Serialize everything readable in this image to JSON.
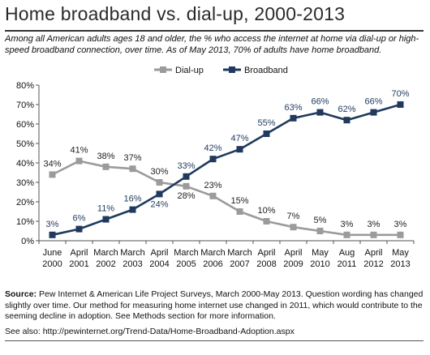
{
  "header": {
    "title": "Home broadband vs. dial-up, 2000-2013",
    "subtitle": "Among all American adults ages 18 and older, the % who access the internet at home via dial-up or high-speed broadband connection, over time. As of May 2013, 70% of adults have home broadband."
  },
  "footer": {
    "source_label": "Source:",
    "source_text": " Pew Internet & American Life Project Surveys, March 2000-May 2013. Question wording has changed slightly over time. Our method for measuring home internet use changed in 2011, which would contribute to the seeming decline in adoption. See Methods section for more information.",
    "see_also": "See also: http://pewinternet.org/Trend-Data/Home-Broadband-Adoption.aspx"
  },
  "chart_data": {
    "type": "line",
    "title": "",
    "xlabel": "",
    "ylabel": "",
    "ylim": [
      0,
      80
    ],
    "yticks": [
      0,
      10,
      20,
      30,
      40,
      50,
      60,
      70,
      80
    ],
    "ytick_labels": [
      "0%",
      "10%",
      "20%",
      "30%",
      "40%",
      "50%",
      "60%",
      "70%",
      "80%"
    ],
    "grid": false,
    "legend_position": "top",
    "categories": [
      [
        "June",
        "2000"
      ],
      [
        "April",
        "2001"
      ],
      [
        "March",
        "2002"
      ],
      [
        "March",
        "2003"
      ],
      [
        "April",
        "2004"
      ],
      [
        "March",
        "2005"
      ],
      [
        "March",
        "2006"
      ],
      [
        "March",
        "2007"
      ],
      [
        "April",
        "2008"
      ],
      [
        "April",
        "2009"
      ],
      [
        "May",
        "2010"
      ],
      [
        "Aug",
        "2011"
      ],
      [
        "April",
        "2012"
      ],
      [
        "May",
        "2013"
      ]
    ],
    "series": [
      {
        "name": "Dial-up",
        "color": "#9b9b9b",
        "marker": "square",
        "values": [
          34,
          41,
          38,
          37,
          30,
          28,
          23,
          15,
          10,
          7,
          5,
          3,
          3,
          3
        ],
        "labels": [
          "34%",
          "41%",
          "38%",
          "37%",
          "30%",
          "28%",
          "23%",
          "15%",
          "10%",
          "7%",
          "5%",
          "3%",
          "3%",
          "3%"
        ]
      },
      {
        "name": "Broadband",
        "color": "#1f3a5c",
        "marker": "square",
        "values": [
          3,
          6,
          11,
          16,
          24,
          33,
          42,
          47,
          55,
          63,
          66,
          62,
          66,
          70
        ],
        "labels": [
          "3%",
          "6%",
          "11%",
          "16%",
          "24%",
          "33%",
          "42%",
          "47%",
          "55%",
          "63%",
          "66%",
          "62%",
          "66%",
          "70%"
        ]
      }
    ]
  }
}
